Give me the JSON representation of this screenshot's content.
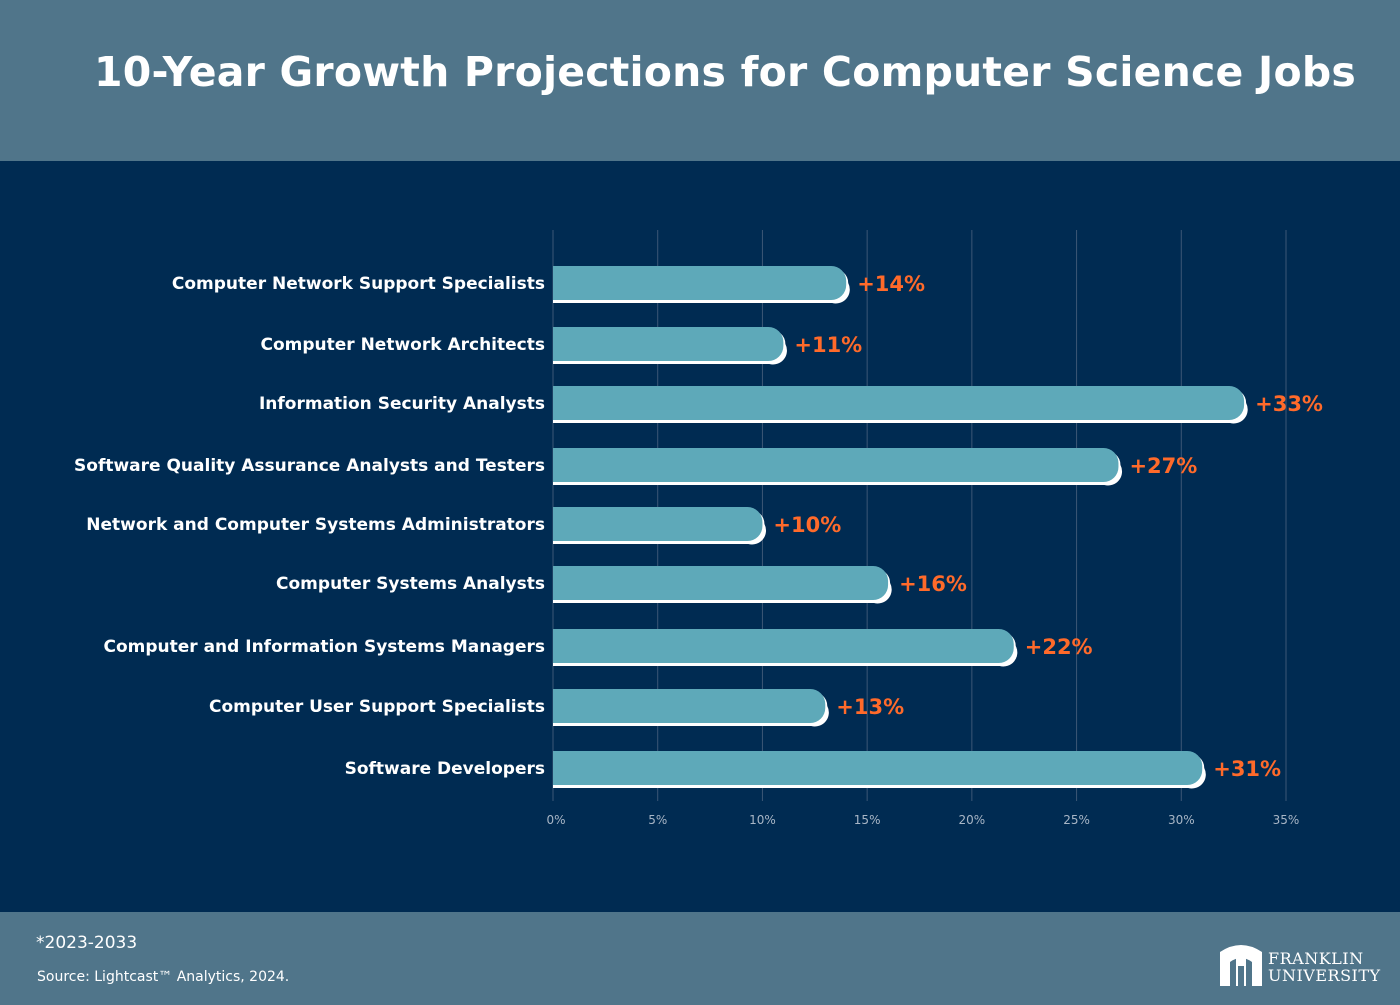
{
  "header": {
    "title": "10-Year Growth Projections for Computer Science Jobs"
  },
  "footer": {
    "note": "*2023-2033",
    "source": "Source: Lightcast™ Analytics, 2024.",
    "logo_line1": "FRANKLIN",
    "logo_line2": "UNIVERSITY"
  },
  "colors": {
    "background": "#002b52",
    "header_band": "#50758a",
    "bar": "#5ea9b9",
    "value_label": "#ff6a2a",
    "gridline": "#3c5776",
    "tick_label": "#a8b6c6",
    "category_label": "#ffffff"
  },
  "chart_data": {
    "type": "bar",
    "orientation": "horizontal",
    "title": "10-Year Growth Projections for Computer Science Jobs",
    "xlabel": "",
    "ylabel": "",
    "xlim": [
      0,
      35
    ],
    "x_ticks": [
      0,
      5,
      10,
      15,
      20,
      25,
      30,
      35
    ],
    "x_tick_labels": [
      "0%",
      "5%",
      "10%",
      "15%",
      "20%",
      "25%",
      "30%",
      "35%"
    ],
    "grid": "vertical",
    "categories": [
      "Computer Network Support Specialists",
      "Computer Network Architects",
      "Information Security Analysts",
      "Software Quality Assurance Analysts and Testers",
      "Network and Computer Systems Administrators",
      "Computer Systems Analysts",
      "Computer and Information Systems Managers",
      "Computer User Support Specialists",
      "Software Developers"
    ],
    "values": [
      14,
      11,
      33,
      27,
      10,
      16,
      22,
      13,
      31
    ],
    "value_labels": [
      "+14%",
      "+11%",
      "+33%",
      "+27%",
      "+10%",
      "+16%",
      "+22%",
      "+13%",
      "+31%"
    ]
  }
}
